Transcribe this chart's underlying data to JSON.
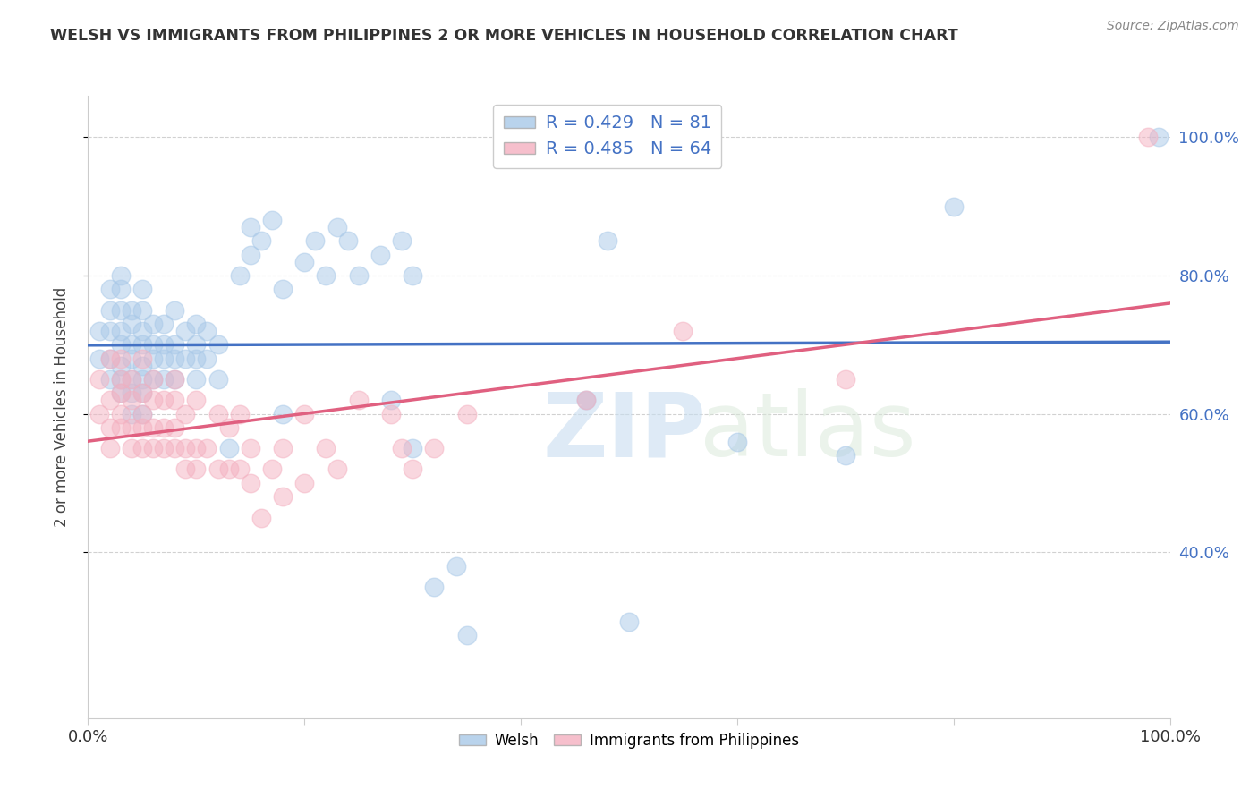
{
  "title": "WELSH VS IMMIGRANTS FROM PHILIPPINES 2 OR MORE VEHICLES IN HOUSEHOLD CORRELATION CHART",
  "source": "Source: ZipAtlas.com",
  "ylabel": "2 or more Vehicles in Household",
  "ytick_labels": [
    "100.0%",
    "80.0%",
    "60.0%",
    "40.0%"
  ],
  "ytick_positions": [
    1.0,
    0.8,
    0.6,
    0.4
  ],
  "xlim": [
    0.0,
    1.0
  ],
  "ylim": [
    0.16,
    1.06
  ],
  "welsh_R": 0.429,
  "welsh_N": 81,
  "phil_R": 0.485,
  "phil_N": 64,
  "welsh_color": "#a8c8e8",
  "phil_color": "#f4b0c0",
  "welsh_line_color": "#4472c4",
  "phil_line_color": "#e06080",
  "watermark_zip": "ZIP",
  "watermark_atlas": "atlas",
  "welsh_x": [
    0.01,
    0.01,
    0.02,
    0.02,
    0.02,
    0.02,
    0.02,
    0.03,
    0.03,
    0.03,
    0.03,
    0.03,
    0.03,
    0.03,
    0.03,
    0.04,
    0.04,
    0.04,
    0.04,
    0.04,
    0.04,
    0.04,
    0.05,
    0.05,
    0.05,
    0.05,
    0.05,
    0.05,
    0.05,
    0.05,
    0.06,
    0.06,
    0.06,
    0.06,
    0.07,
    0.07,
    0.07,
    0.07,
    0.08,
    0.08,
    0.08,
    0.08,
    0.09,
    0.09,
    0.1,
    0.1,
    0.1,
    0.1,
    0.11,
    0.11,
    0.12,
    0.12,
    0.13,
    0.14,
    0.15,
    0.15,
    0.16,
    0.17,
    0.18,
    0.18,
    0.2,
    0.21,
    0.22,
    0.23,
    0.24,
    0.25,
    0.27,
    0.28,
    0.29,
    0.3,
    0.3,
    0.32,
    0.34,
    0.35,
    0.46,
    0.48,
    0.5,
    0.6,
    0.7,
    0.8,
    0.99
  ],
  "welsh_y": [
    0.68,
    0.72,
    0.65,
    0.68,
    0.72,
    0.75,
    0.78,
    0.63,
    0.65,
    0.67,
    0.7,
    0.72,
    0.75,
    0.78,
    0.8,
    0.6,
    0.63,
    0.65,
    0.68,
    0.7,
    0.73,
    0.75,
    0.6,
    0.63,
    0.65,
    0.67,
    0.7,
    0.72,
    0.75,
    0.78,
    0.65,
    0.68,
    0.7,
    0.73,
    0.65,
    0.68,
    0.7,
    0.73,
    0.65,
    0.68,
    0.7,
    0.75,
    0.68,
    0.72,
    0.65,
    0.68,
    0.7,
    0.73,
    0.68,
    0.72,
    0.65,
    0.7,
    0.55,
    0.8,
    0.83,
    0.87,
    0.85,
    0.88,
    0.6,
    0.78,
    0.82,
    0.85,
    0.8,
    0.87,
    0.85,
    0.8,
    0.83,
    0.62,
    0.85,
    0.55,
    0.8,
    0.35,
    0.38,
    0.28,
    0.62,
    0.85,
    0.3,
    0.56,
    0.54,
    0.9,
    1.0
  ],
  "phil_x": [
    0.01,
    0.01,
    0.02,
    0.02,
    0.02,
    0.02,
    0.03,
    0.03,
    0.03,
    0.03,
    0.03,
    0.04,
    0.04,
    0.04,
    0.04,
    0.05,
    0.05,
    0.05,
    0.05,
    0.05,
    0.06,
    0.06,
    0.06,
    0.06,
    0.07,
    0.07,
    0.07,
    0.08,
    0.08,
    0.08,
    0.08,
    0.09,
    0.09,
    0.09,
    0.1,
    0.1,
    0.1,
    0.11,
    0.12,
    0.12,
    0.13,
    0.13,
    0.14,
    0.14,
    0.15,
    0.15,
    0.16,
    0.17,
    0.18,
    0.18,
    0.2,
    0.2,
    0.22,
    0.23,
    0.25,
    0.28,
    0.29,
    0.3,
    0.32,
    0.35,
    0.46,
    0.55,
    0.7,
    0.98
  ],
  "phil_y": [
    0.6,
    0.65,
    0.55,
    0.58,
    0.62,
    0.68,
    0.58,
    0.6,
    0.63,
    0.65,
    0.68,
    0.55,
    0.58,
    0.62,
    0.65,
    0.55,
    0.58,
    0.6,
    0.63,
    0.68,
    0.55,
    0.58,
    0.62,
    0.65,
    0.55,
    0.58,
    0.62,
    0.55,
    0.58,
    0.62,
    0.65,
    0.52,
    0.55,
    0.6,
    0.52,
    0.55,
    0.62,
    0.55,
    0.52,
    0.6,
    0.52,
    0.58,
    0.52,
    0.6,
    0.5,
    0.55,
    0.45,
    0.52,
    0.48,
    0.55,
    0.5,
    0.6,
    0.55,
    0.52,
    0.62,
    0.6,
    0.55,
    0.52,
    0.55,
    0.6,
    0.62,
    0.72,
    0.65,
    1.0
  ]
}
